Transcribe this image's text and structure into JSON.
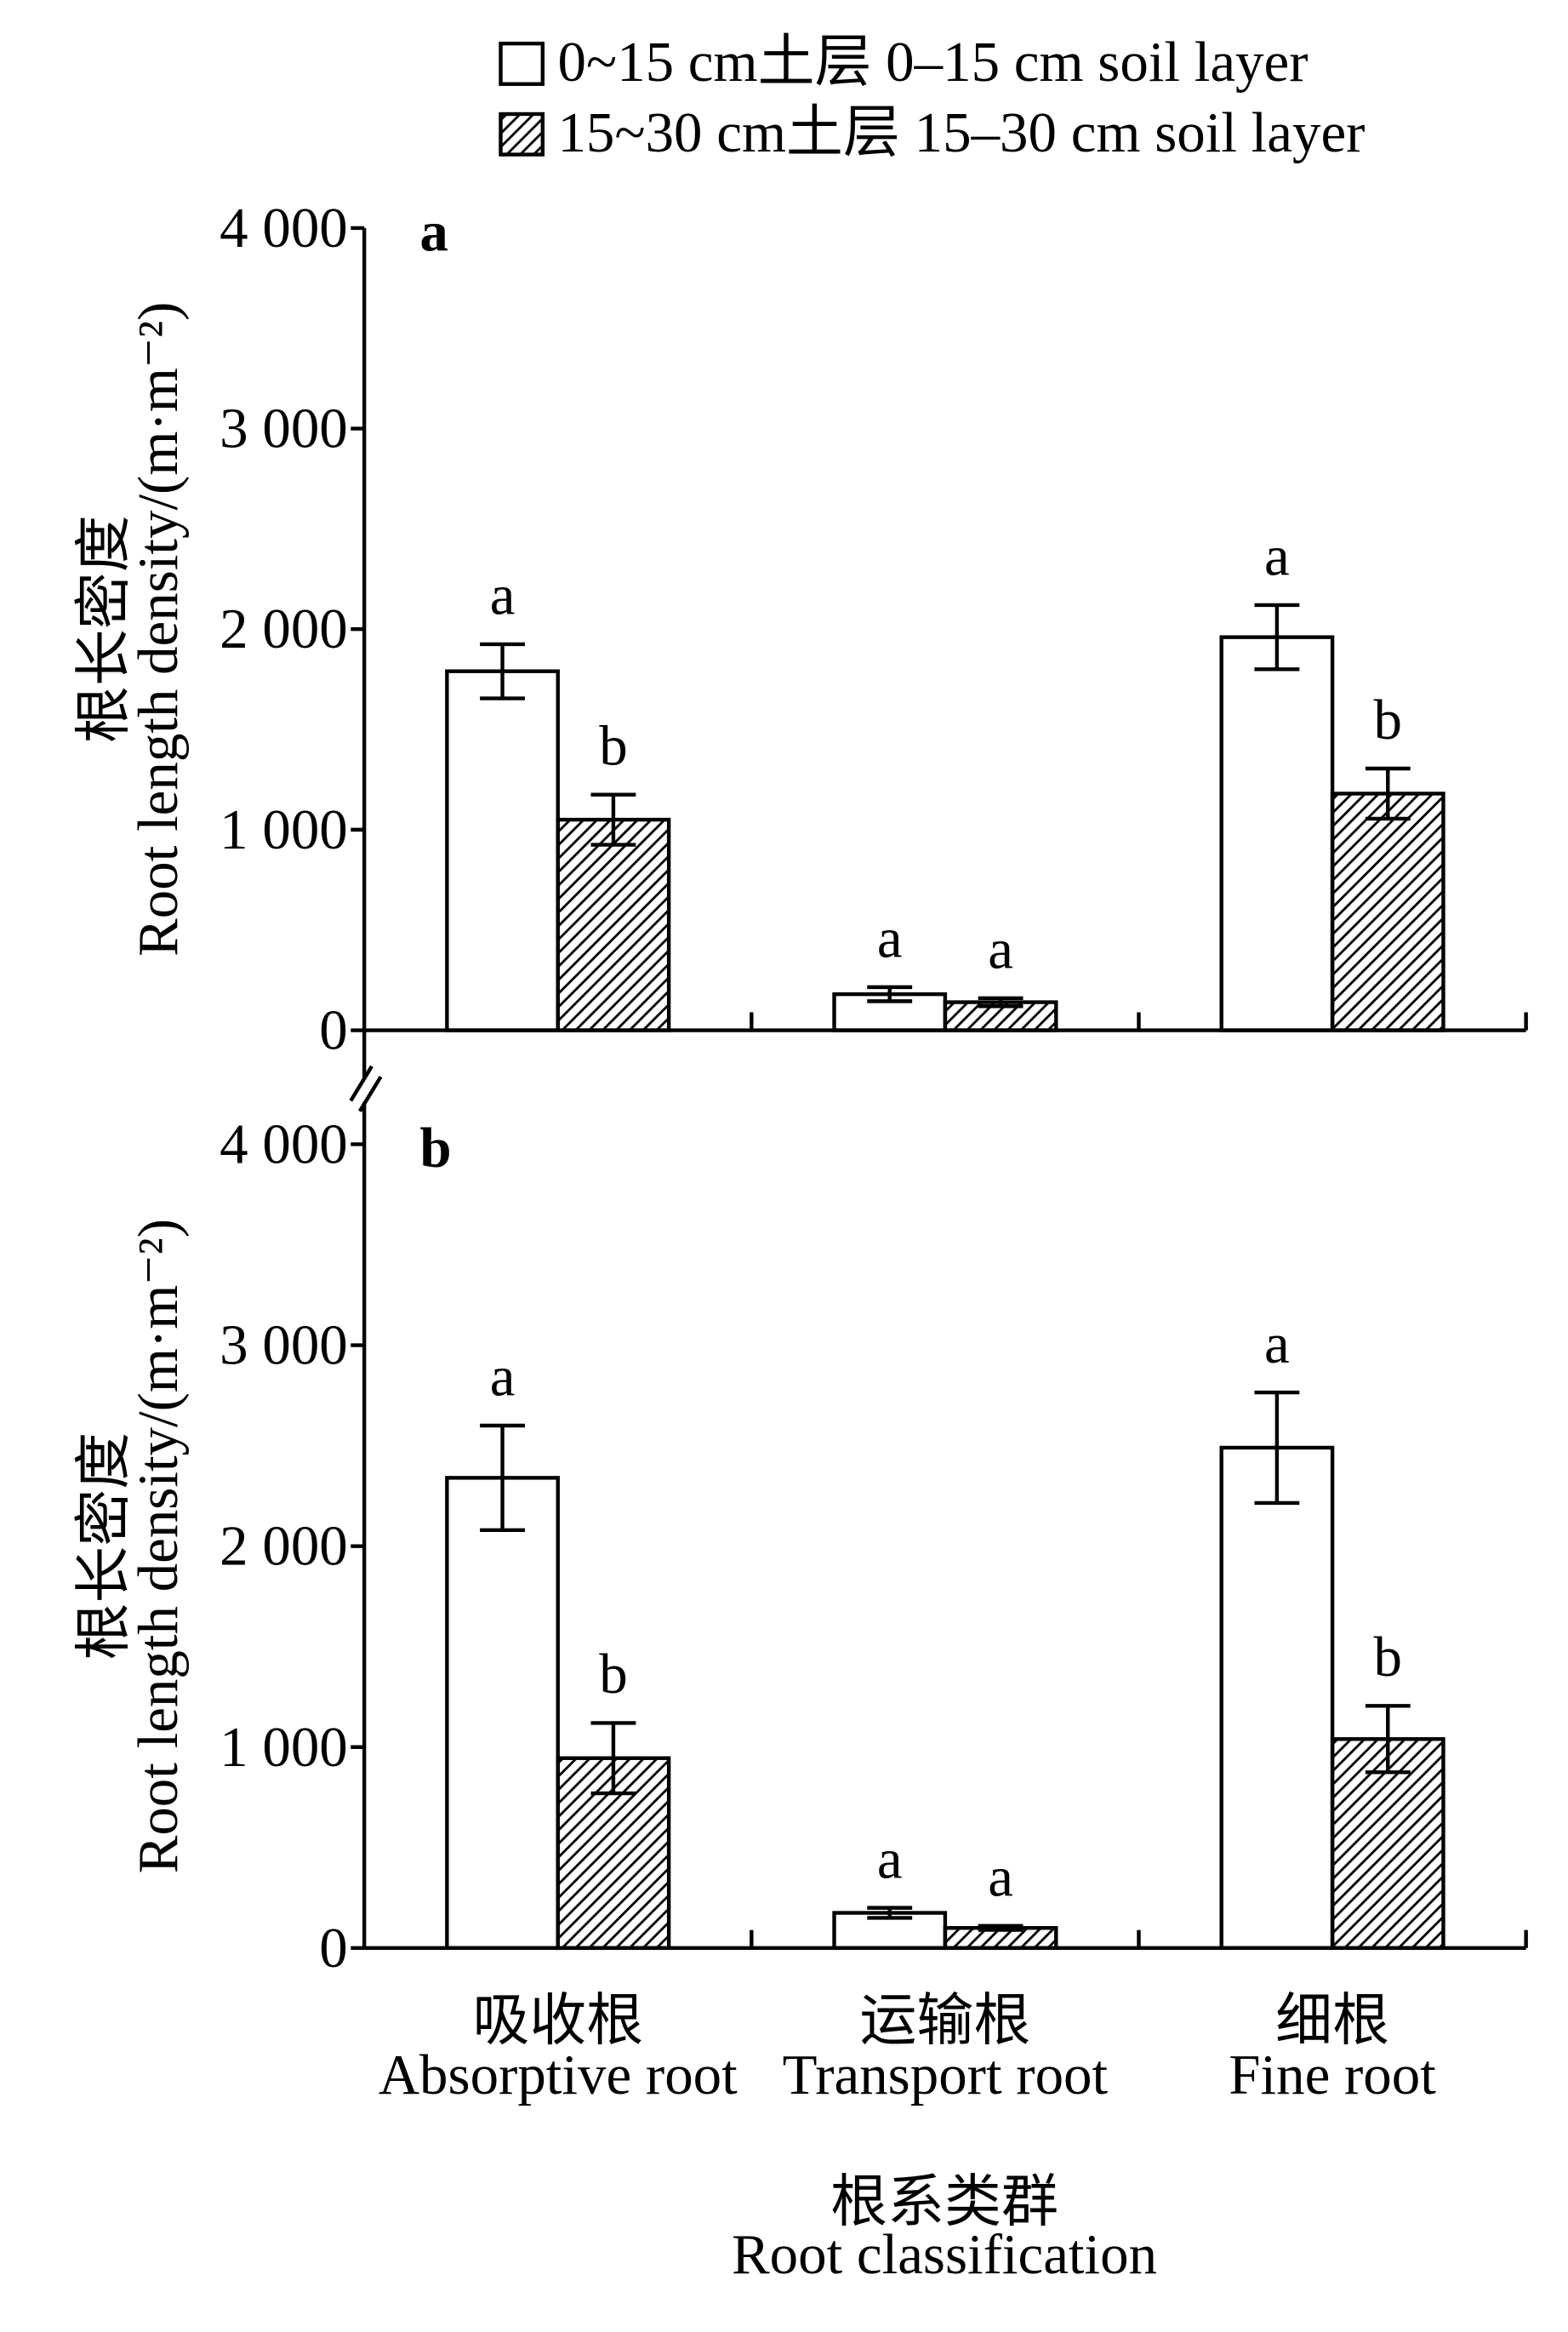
{
  "colors": {
    "stroke": "#000000",
    "open_fill": "#ffffff",
    "hatch": "#000000",
    "background": "#ffffff"
  },
  "chart_data": {
    "type": "bar",
    "legend": {
      "placement": "top",
      "entries": [
        {
          "label": "0~15 cm土层 0–15 cm soil layer",
          "hatched": false
        },
        {
          "label": "15~30 cm土层 15–30 cm soil layer",
          "hatched": true
        }
      ]
    },
    "categories": [
      {
        "zh": "吸收根",
        "en": "Absorptive root"
      },
      {
        "zh": "运输根",
        "en": "Transport root"
      },
      {
        "zh": "细根",
        "en": "Fine root"
      }
    ],
    "xlabel": {
      "zh": "根系类群",
      "en": "Root classification"
    },
    "ylabel": {
      "zh": "根长密度",
      "en": "Root length density/(m·m⁻²)"
    },
    "ylim": [
      0,
      4000
    ],
    "yticks": [
      {
        "value": 0,
        "label": "0"
      },
      {
        "value": 1000,
        "label": "1 000"
      },
      {
        "value": 2000,
        "label": "2 000"
      },
      {
        "value": 3000,
        "label": "3 000"
      },
      {
        "value": 4000,
        "label": "4 000"
      }
    ],
    "y_axis_break": true,
    "panels": [
      {
        "label": "a",
        "series": [
          {
            "values": [
              1790,
              180,
              1960
            ],
            "errors": [
              135,
              35,
              160
            ],
            "letters": [
              "a",
              "a",
              "a"
            ]
          },
          {
            "values": [
              1050,
              140,
              1180
            ],
            "errors": [
              125,
              20,
              125
            ],
            "letters": [
              "b",
              "a",
              "b"
            ]
          }
        ]
      },
      {
        "label": "b",
        "series": [
          {
            "values": [
              2340,
              175,
              2490
            ],
            "errors": [
              260,
              25,
              275
            ],
            "letters": [
              "a",
              "a",
              "a"
            ]
          },
          {
            "values": [
              945,
              100,
              1040
            ],
            "errors": [
              175,
              10,
              165
            ],
            "letters": [
              "b",
              "a",
              "b"
            ]
          }
        ]
      }
    ]
  }
}
